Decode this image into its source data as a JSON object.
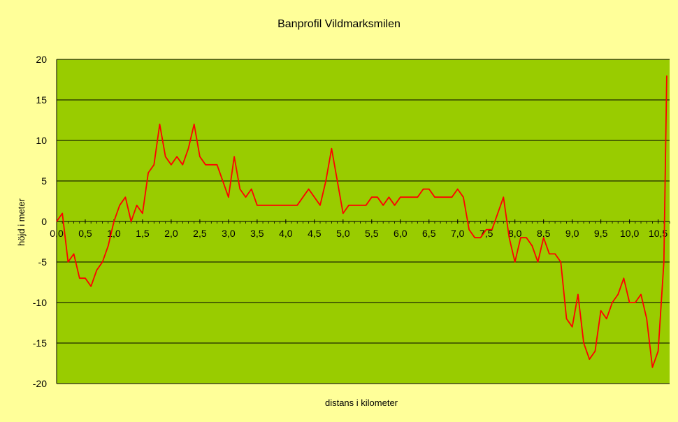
{
  "chart_data": {
    "type": "line",
    "title": "Banprofil Vildmarksmilen",
    "xlabel": "distans i kilometer",
    "ylabel": "höjd i meter",
    "ylim": [
      -20,
      20
    ],
    "xlim": [
      0,
      10.7
    ],
    "grid": true,
    "legend": "none",
    "y_ticks": [
      "20",
      "15",
      "10",
      "5",
      "0",
      "-5",
      "-10",
      "-15",
      "-20"
    ],
    "x_ticks": [
      "0,0",
      "0,5",
      "1,0",
      "1,5",
      "2,0",
      "2,5",
      "3,0",
      "3,5",
      "4,0",
      "4,5",
      "5,0",
      "5,5",
      "6,0",
      "6,5",
      "7,0",
      "7,5",
      "8,0",
      "8,5",
      "9,0",
      "9,5",
      "10,0",
      "10,5"
    ],
    "series": [
      {
        "x": [
          0.0,
          0.1,
          0.2,
          0.3,
          0.4,
          0.5,
          0.6,
          0.7,
          0.8,
          0.9,
          1.0,
          1.1,
          1.2,
          1.3,
          1.4,
          1.5,
          1.6,
          1.7,
          1.8,
          1.9,
          2.0,
          2.1,
          2.2,
          2.3,
          2.4,
          2.5,
          2.6,
          2.7,
          2.8,
          2.9,
          3.0,
          3.1,
          3.2,
          3.3,
          3.4,
          3.5,
          3.6,
          3.7,
          3.8,
          3.9,
          4.0,
          4.1,
          4.2,
          4.3,
          4.4,
          4.5,
          4.6,
          4.7,
          4.8,
          4.9,
          5.0,
          5.1,
          5.2,
          5.3,
          5.4,
          5.5,
          5.6,
          5.7,
          5.8,
          5.9,
          6.0,
          6.1,
          6.2,
          6.3,
          6.4,
          6.5,
          6.6,
          6.7,
          6.8,
          6.9,
          7.0,
          7.1,
          7.2,
          7.3,
          7.4,
          7.5,
          7.6,
          7.7,
          7.8,
          7.9,
          8.0,
          8.1,
          8.2,
          8.3,
          8.4,
          8.5,
          8.6,
          8.7,
          8.8,
          8.9,
          9.0,
          9.1,
          9.2,
          9.3,
          9.4,
          9.5,
          9.6,
          9.7,
          9.8,
          9.9,
          10.0,
          10.1,
          10.2,
          10.3,
          10.4,
          10.5,
          10.6,
          10.65
        ],
        "values": [
          0,
          1,
          -5,
          -4,
          -7,
          -7,
          -8,
          -6,
          -5,
          -3,
          0,
          2,
          3,
          0,
          2,
          1,
          6,
          7,
          12,
          8,
          7,
          8,
          7,
          9,
          12,
          8,
          7,
          7,
          7,
          5,
          3,
          8,
          4,
          3,
          4,
          2,
          2,
          2,
          2,
          2,
          2,
          2,
          2,
          3,
          4,
          3,
          2,
          5,
          9,
          5,
          1,
          2,
          2,
          2,
          2,
          3,
          3,
          2,
          3,
          2,
          3,
          3,
          3,
          3,
          4,
          4,
          3,
          3,
          3,
          3,
          4,
          3,
          -1,
          -2,
          -2,
          -1,
          -1,
          1,
          3,
          -2,
          -5,
          -2,
          -2,
          -3,
          -5,
          -2,
          -4,
          -4,
          -5,
          -12,
          -13,
          -9,
          -15,
          -17,
          -16,
          -11,
          -12,
          -10,
          -9,
          -7,
          -10,
          -10,
          -9,
          -12,
          -18,
          -16,
          -5,
          18
        ],
        "color": "#ff0000"
      }
    ]
  },
  "colors": {
    "background": "#ffff99",
    "plot_area": "#99cc00",
    "line": "#ff0000",
    "grid": "#000000"
  }
}
